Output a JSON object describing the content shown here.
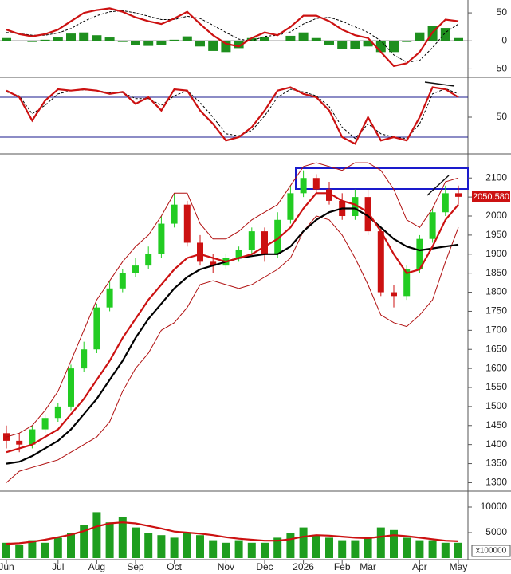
{
  "chart_data": [
    {
      "type": "indicator",
      "ylim": [
        -65,
        70
      ],
      "yticks": [
        50,
        0,
        -50
      ],
      "levels": [
        0
      ],
      "level_color": "#333333",
      "series": [
        {
          "style": "bar",
          "color": "#1e8f1e",
          "values": [
            5,
            -1,
            -2,
            2,
            6,
            13,
            15,
            10,
            6,
            -2,
            -8,
            -9,
            -8,
            2,
            8,
            -10,
            -18,
            -20,
            -13,
            5,
            7,
            0,
            9,
            15,
            5,
            -7,
            -15,
            -15,
            -10,
            -20,
            -20,
            -2,
            15,
            27,
            23,
            5
          ]
        },
        {
          "style": "dashed",
          "color": "#000000",
          "values": [
            15,
            13,
            10,
            10,
            14,
            22,
            35,
            45,
            52,
            54,
            50,
            44,
            38,
            38,
            44,
            40,
            28,
            15,
            3,
            0,
            8,
            10,
            16,
            30,
            40,
            42,
            35,
            25,
            15,
            0,
            -25,
            -38,
            -35,
            -12,
            15,
            30
          ]
        },
        {
          "style": "thick",
          "color": "#cc1111",
          "values": [
            20,
            12,
            8,
            12,
            20,
            35,
            50,
            55,
            58,
            52,
            42,
            35,
            30,
            40,
            52,
            30,
            10,
            -5,
            -10,
            5,
            15,
            10,
            25,
            45,
            45,
            35,
            20,
            10,
            5,
            -20,
            -45,
            -40,
            -20,
            15,
            38,
            35
          ]
        }
      ]
    },
    {
      "type": "indicator",
      "ylim": [
        -4,
        110
      ],
      "yticks": [
        50
      ],
      "levels": [
        20,
        80
      ],
      "level_color": "#1a1a8c",
      "series": [
        {
          "style": "dashed",
          "color": "#000000",
          "values": [
            88,
            82,
            55,
            68,
            85,
            90,
            91,
            90,
            87,
            87,
            78,
            78,
            68,
            82,
            90,
            72,
            50,
            25,
            22,
            30,
            52,
            80,
            92,
            88,
            82,
            66,
            35,
            18,
            40,
            25,
            20,
            18,
            40,
            85,
            93,
            85
          ]
        },
        {
          "style": "thick",
          "color": "#cc1111",
          "values": [
            90,
            80,
            45,
            75,
            92,
            90,
            92,
            90,
            85,
            88,
            70,
            80,
            60,
            92,
            90,
            60,
            40,
            15,
            20,
            35,
            60,
            90,
            95,
            85,
            80,
            60,
            20,
            10,
            50,
            15,
            20,
            15,
            50,
            95,
            92,
            80
          ]
        }
      ]
    },
    {
      "type": "candlestick",
      "ylim": [
        1280,
        2157
      ],
      "yticks": [
        1300,
        1350,
        1400,
        1450,
        1500,
        1550,
        1600,
        1650,
        1700,
        1750,
        1800,
        1850,
        1900,
        1950,
        2000,
        2050,
        2100
      ],
      "up_color": "#22cc22",
      "down_color": "#cc1111",
      "price_tag": "2050.580",
      "price_tag_color": "#cc1111",
      "open": [
        1430,
        1410,
        1400,
        1440,
        1470,
        1500,
        1600,
        1650,
        1760,
        1810,
        1850,
        1870,
        1900,
        1980,
        2030,
        1930,
        1880,
        1870,
        1890,
        1910,
        1960,
        1900,
        1990,
        2060,
        2100,
        2070,
        2040,
        2000,
        2050,
        1960,
        1800,
        1790,
        1860,
        1940,
        2010,
        2060
      ],
      "high": [
        1450,
        1430,
        1450,
        1480,
        1510,
        1610,
        1670,
        1770,
        1830,
        1860,
        1890,
        1920,
        2000,
        2060,
        2040,
        1950,
        1900,
        1900,
        1920,
        1970,
        1970,
        2010,
        2080,
        2120,
        2110,
        2090,
        2060,
        2070,
        2070,
        1970,
        1820,
        1870,
        1950,
        2020,
        2080,
        2080
      ],
      "low": [
        1390,
        1380,
        1390,
        1430,
        1460,
        1490,
        1590,
        1640,
        1750,
        1800,
        1840,
        1860,
        1890,
        1970,
        1920,
        1870,
        1850,
        1860,
        1880,
        1900,
        1880,
        1890,
        1980,
        2050,
        2060,
        2030,
        1990,
        1990,
        1950,
        1790,
        1760,
        1780,
        1850,
        1930,
        2000,
        2030
      ],
      "close": [
        1410,
        1400,
        1440,
        1470,
        1500,
        1600,
        1650,
        1760,
        1810,
        1850,
        1870,
        1900,
        1980,
        2030,
        1930,
        1880,
        1870,
        1890,
        1910,
        1960,
        1900,
        1990,
        2060,
        2100,
        2070,
        2040,
        2000,
        2050,
        1960,
        1800,
        1790,
        1860,
        1940,
        2010,
        2060,
        2050.58
      ],
      "series": [
        {
          "style": "thin",
          "color": "#b01010",
          "values": [
            1420,
            1430,
            1450,
            1490,
            1540,
            1620,
            1700,
            1780,
            1830,
            1880,
            1920,
            1950,
            2000,
            2060,
            2060,
            1980,
            1940,
            1940,
            1960,
            1990,
            2010,
            2030,
            2080,
            2130,
            2140,
            2130,
            2120,
            2140,
            2140,
            2120,
            2070,
            1990,
            1970,
            2020,
            2090,
            2100
          ]
        },
        {
          "style": "thin",
          "color": "#b01010",
          "values": [
            1300,
            1330,
            1340,
            1350,
            1360,
            1380,
            1400,
            1420,
            1460,
            1540,
            1600,
            1640,
            1700,
            1720,
            1760,
            1820,
            1830,
            1820,
            1810,
            1820,
            1840,
            1860,
            1890,
            1960,
            2000,
            1990,
            1950,
            1890,
            1820,
            1740,
            1720,
            1710,
            1740,
            1780,
            1880,
            1970
          ]
        },
        {
          "style": "thick",
          "color": "#000000",
          "values": [
            1350,
            1355,
            1370,
            1390,
            1410,
            1440,
            1480,
            1520,
            1570,
            1620,
            1680,
            1730,
            1770,
            1810,
            1840,
            1860,
            1870,
            1880,
            1890,
            1895,
            1900,
            1900,
            1920,
            1960,
            1990,
            2010,
            2020,
            2020,
            2000,
            1970,
            1940,
            1920,
            1910,
            1915,
            1920,
            1925
          ]
        },
        {
          "style": "thick",
          "color": "#cc1111",
          "values": [
            1380,
            1390,
            1400,
            1420,
            1440,
            1480,
            1520,
            1570,
            1620,
            1680,
            1730,
            1780,
            1820,
            1860,
            1890,
            1900,
            1890,
            1880,
            1890,
            1900,
            1920,
            1940,
            1970,
            2020,
            2060,
            2060,
            2040,
            2030,
            2010,
            1960,
            1900,
            1850,
            1860,
            1920,
            1990,
            2030
          ]
        }
      ]
    },
    {
      "type": "bar",
      "ylim": [
        0,
        12500
      ],
      "yticks": [
        10000,
        5000
      ],
      "unit_label": "x100000",
      "color": "#1e9e1e",
      "categories": [
        "Jun",
        null,
        null,
        null,
        "Jul",
        null,
        null,
        "Aug",
        null,
        null,
        "Sep",
        null,
        null,
        "Oct",
        null,
        null,
        null,
        "Nov",
        null,
        null,
        "Dec",
        null,
        null,
        "2026",
        null,
        null,
        "Feb",
        null,
        "Mar",
        null,
        null,
        null,
        "Apr",
        null,
        null,
        "May"
      ],
      "values": [
        3000,
        2500,
        3500,
        3000,
        4000,
        5000,
        6500,
        9000,
        7000,
        8000,
        6000,
        5000,
        4500,
        4000,
        5000,
        4500,
        3500,
        3000,
        3500,
        3000,
        3000,
        4000,
        5000,
        6000,
        4500,
        4000,
        3500,
        3500,
        4000,
        6000,
        5500,
        4000,
        3500,
        3500,
        3000,
        3000
      ],
      "series": [
        {
          "style": "thick",
          "color": "#cc1111",
          "values": [
            2800,
            2900,
            3200,
            3600,
            4100,
            4600,
            5300,
            6200,
            6800,
            7000,
            6800,
            6300,
            5800,
            5200,
            5000,
            4800,
            4500,
            4100,
            3800,
            3600,
            3400,
            3400,
            3700,
            4200,
            4500,
            4400,
            4200,
            4000,
            3900,
            4200,
            4500,
            4300,
            4000,
            3700,
            3400,
            3300
          ]
        }
      ]
    }
  ]
}
